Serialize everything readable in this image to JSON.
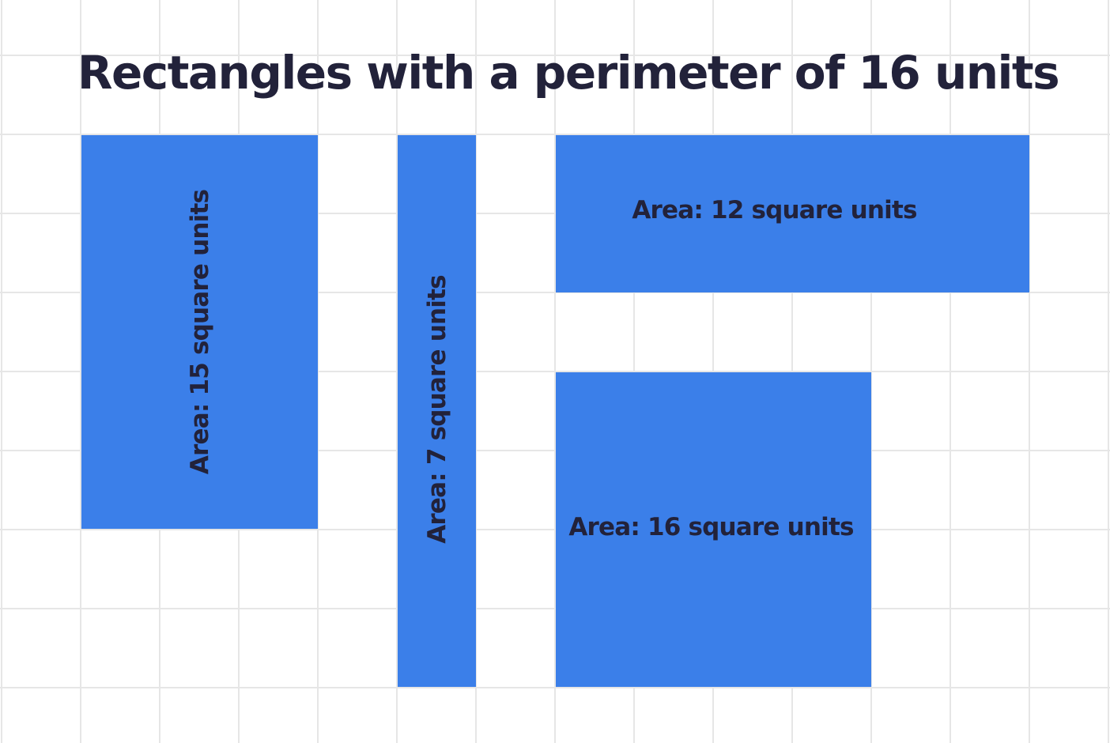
{
  "title": "Rectangles with a perimeter of 16 units",
  "colors": {
    "rectangle_fill": "#3b7fe9",
    "label_text": "#22223a",
    "grid_line": "#e6e6e6",
    "background": "#ffffff"
  },
  "rectangles": [
    {
      "label": "Area: 15 square units"
    },
    {
      "label": "Area: 7 square units"
    },
    {
      "label": "Area: 12 square units"
    },
    {
      "label": "Area: 16 square units"
    }
  ]
}
